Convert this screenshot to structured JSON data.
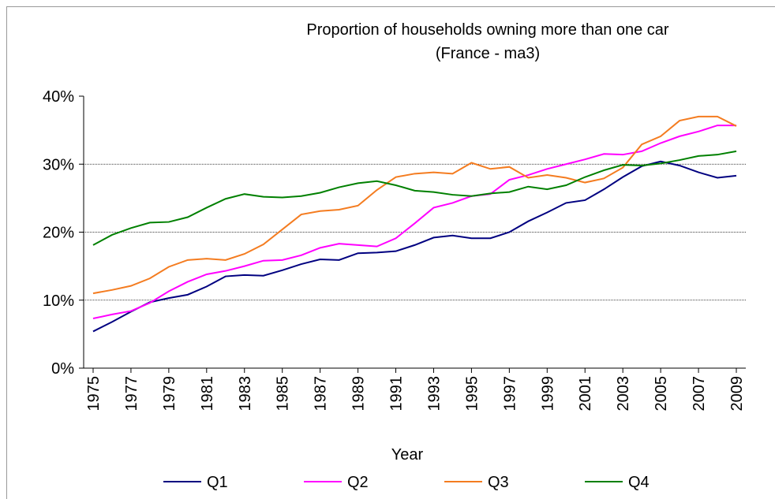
{
  "chart_data": {
    "type": "line",
    "title": "Proportion of households owning more than one car",
    "subtitle": "(France - ma3)",
    "x_label": "Year",
    "x": [
      1975,
      1976,
      1977,
      1978,
      1979,
      1980,
      1981,
      1982,
      1983,
      1984,
      1985,
      1986,
      1987,
      1988,
      1989,
      1990,
      1991,
      1992,
      1993,
      1994,
      1995,
      1996,
      1997,
      1998,
      1999,
      2000,
      2001,
      2002,
      2003,
      2004,
      2005,
      2006,
      2007,
      2008,
      2009
    ],
    "xlim": [
      1974.5,
      2009.5
    ],
    "xticks": [
      1975,
      1977,
      1979,
      1981,
      1983,
      1985,
      1987,
      1989,
      1991,
      1993,
      1995,
      1997,
      1999,
      2001,
      2003,
      2005,
      2007,
      2009
    ],
    "ylim": [
      0,
      40
    ],
    "yticks": [
      {
        "value": 0,
        "label": "0%"
      },
      {
        "value": 10,
        "label": "10%"
      },
      {
        "value": 20,
        "label": "20%"
      },
      {
        "value": 30,
        "label": "30%"
      },
      {
        "value": 40,
        "label": "40%"
      }
    ],
    "grid": true,
    "legend": "bottom",
    "series": [
      {
        "name": "Q1",
        "color": "#000080",
        "values": [
          5.4,
          6.8,
          8.3,
          9.7,
          10.3,
          10.8,
          12.0,
          13.5,
          13.7,
          13.6,
          14.4,
          15.3,
          16.0,
          15.9,
          16.9,
          17.0,
          17.2,
          18.1,
          19.2,
          19.5,
          19.1,
          19.1,
          20.0,
          21.6,
          22.9,
          24.3,
          24.7,
          26.3,
          28.1,
          29.7,
          30.4,
          29.8,
          28.8,
          28.0,
          28.3
        ]
      },
      {
        "name": "Q2",
        "color": "#ff00ff",
        "values": [
          7.3,
          7.9,
          8.4,
          9.6,
          11.3,
          12.7,
          13.8,
          14.3,
          15.0,
          15.8,
          15.9,
          16.6,
          17.7,
          18.3,
          18.1,
          17.9,
          19.1,
          21.3,
          23.6,
          24.3,
          25.3,
          25.6,
          27.7,
          28.4,
          29.3,
          30.0,
          30.7,
          31.5,
          31.4,
          31.9,
          33.1,
          34.1,
          34.8,
          35.7,
          35.7
        ]
      },
      {
        "name": "Q3",
        "color": "#f47c20",
        "values": [
          11.0,
          11.5,
          12.1,
          13.2,
          14.9,
          15.9,
          16.1,
          15.9,
          16.8,
          18.2,
          20.4,
          22.6,
          23.1,
          23.3,
          23.9,
          26.2,
          28.1,
          28.6,
          28.8,
          28.6,
          30.2,
          29.3,
          29.6,
          28.0,
          28.4,
          28.0,
          27.3,
          27.9,
          29.5,
          32.9,
          34.1,
          36.4,
          37.0,
          37.0,
          35.6
        ]
      },
      {
        "name": "Q4",
        "color": "#008000",
        "values": [
          18.1,
          19.6,
          20.6,
          21.4,
          21.5,
          22.2,
          23.6,
          24.9,
          25.6,
          25.2,
          25.1,
          25.3,
          25.8,
          26.6,
          27.2,
          27.5,
          26.9,
          26.1,
          25.9,
          25.5,
          25.3,
          25.7,
          25.9,
          26.7,
          26.3,
          26.9,
          28.1,
          29.1,
          29.9,
          29.8,
          30.1,
          30.6,
          31.2,
          31.4,
          31.9
        ]
      }
    ]
  }
}
